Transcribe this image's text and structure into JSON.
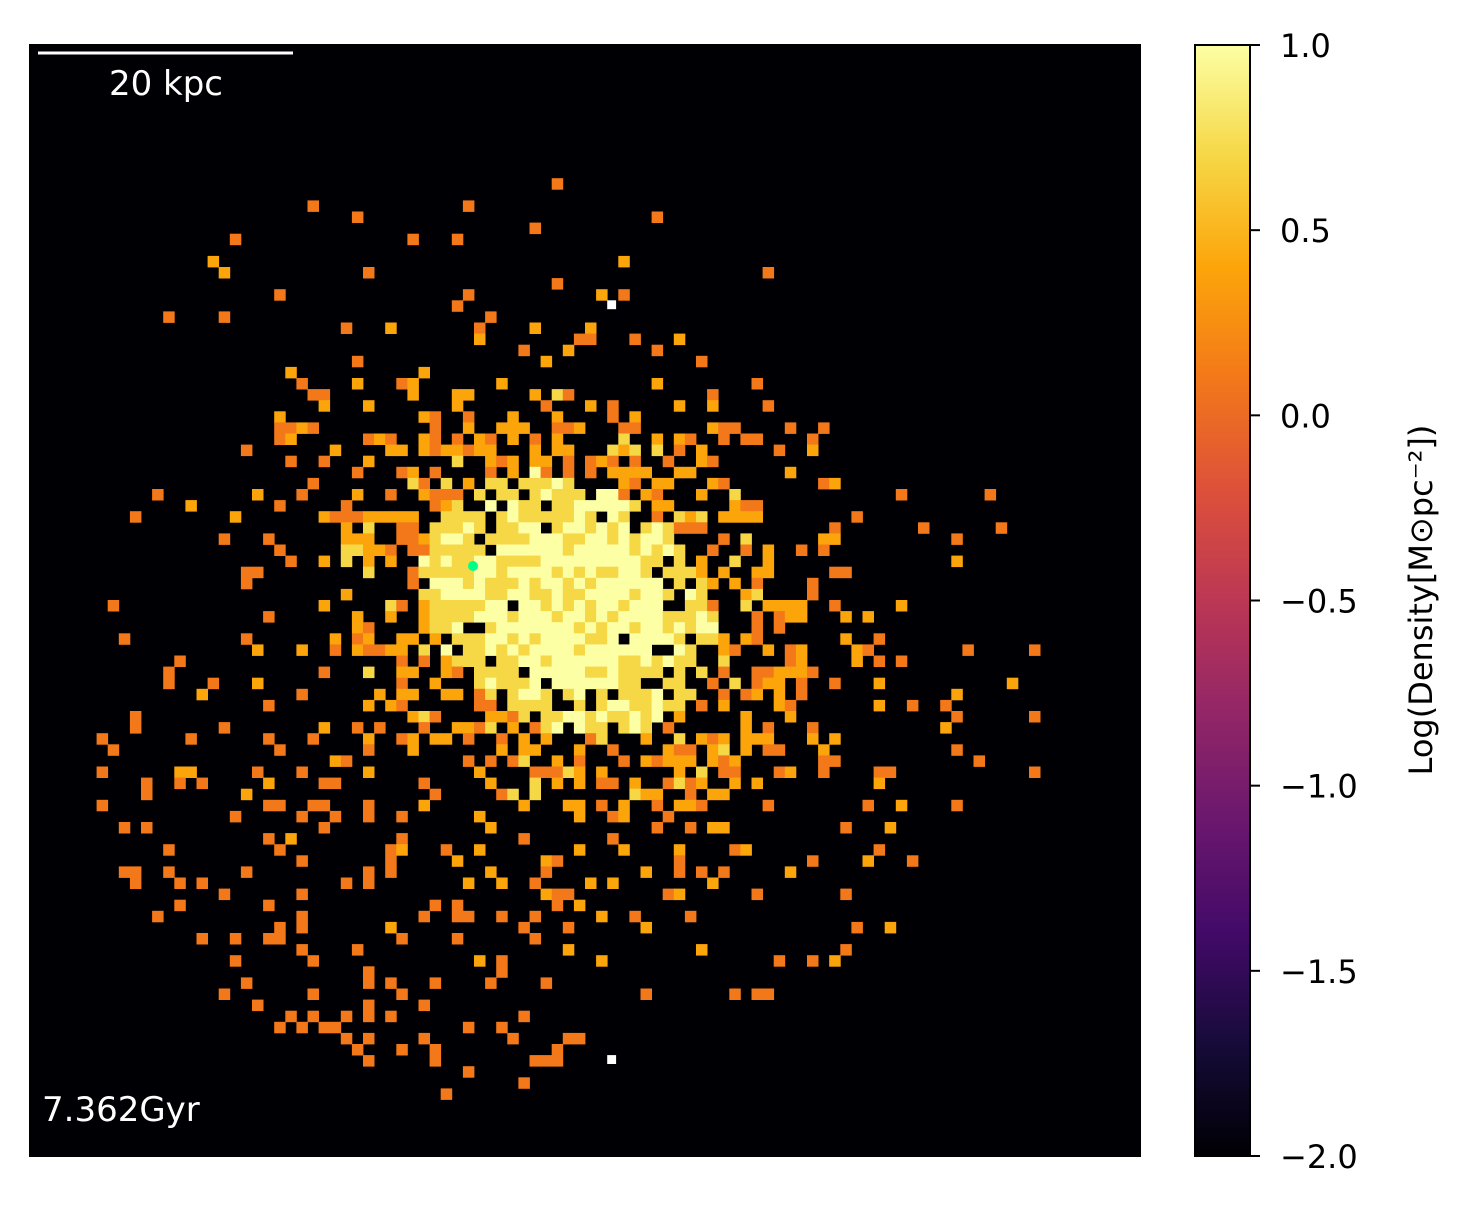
{
  "chart_data": {
    "type": "heatmap",
    "title": "",
    "xlabel": "",
    "ylabel": "",
    "scale_bar_label": "20 kpc",
    "time_label": "7.362Gyr",
    "colorbar": {
      "label": "Log(Density[M⊙pc⁻²])",
      "colormap": "inferno",
      "vmin": -2.0,
      "vmax": 1.0,
      "ticks": [
        1.0,
        0.5,
        0.0,
        -0.5,
        -1.0,
        -1.5,
        -2.0
      ],
      "tick_labels": [
        "1.0",
        "0.5",
        "0.0",
        "−0.5",
        "−1.0",
        "−1.5",
        "−2.0"
      ]
    },
    "grid": false,
    "background_color": "#000004",
    "marker_color": "#00ff88",
    "outlier_pixel_color": "#ffffff"
  }
}
